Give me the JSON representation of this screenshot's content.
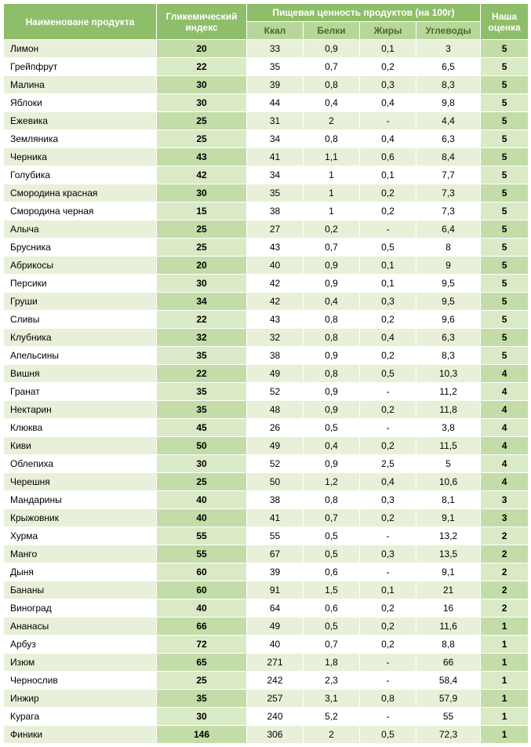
{
  "headers": {
    "product": "Наименоване продукта",
    "gi": "Гликемический индекс",
    "nutrition": "Пищевая ценность продуктов (на 100г)",
    "kcal": "Ккал",
    "protein": "Белки",
    "fat": "Жиры",
    "carbs": "Углеводы",
    "rating": "Наша оценка"
  },
  "columns": [
    "name",
    "gi",
    "kcal",
    "protein",
    "fat",
    "carbs",
    "rating"
  ],
  "rows": [
    [
      "Лимон",
      "20",
      "33",
      "0,9",
      "0,1",
      "3",
      "5"
    ],
    [
      "Грейпфрут",
      "22",
      "35",
      "0,7",
      "0,2",
      "6,5",
      "5"
    ],
    [
      "Малина",
      "30",
      "39",
      "0,8",
      "0,3",
      "8,3",
      "5"
    ],
    [
      "Яблоки",
      "30",
      "44",
      "0,4",
      "0,4",
      "9,8",
      "5"
    ],
    [
      "Ежевика",
      "25",
      "31",
      "2",
      "-",
      "4,4",
      "5"
    ],
    [
      "Земляника",
      "25",
      "34",
      "0,8",
      "0,4",
      "6,3",
      "5"
    ],
    [
      "Черника",
      "43",
      "41",
      "1,1",
      "0,6",
      "8,4",
      "5"
    ],
    [
      "Голубика",
      "42",
      "34",
      "1",
      "0,1",
      "7,7",
      "5"
    ],
    [
      "Смородина красная",
      "30",
      "35",
      "1",
      "0,2",
      "7,3",
      "5"
    ],
    [
      "Смородина черная",
      "15",
      "38",
      "1",
      "0,2",
      "7,3",
      "5"
    ],
    [
      "Алыча",
      "25",
      "27",
      "0,2",
      "-",
      "6,4",
      "5"
    ],
    [
      "Брусника",
      "25",
      "43",
      "0,7",
      "0,5",
      "8",
      "5"
    ],
    [
      "Абрикосы",
      "20",
      "40",
      "0,9",
      "0,1",
      "9",
      "5"
    ],
    [
      "Персики",
      "30",
      "42",
      "0,9",
      "0,1",
      "9,5",
      "5"
    ],
    [
      "Груши",
      "34",
      "42",
      "0,4",
      "0,3",
      "9,5",
      "5"
    ],
    [
      "Сливы",
      "22",
      "43",
      "0,8",
      "0,2",
      "9,6",
      "5"
    ],
    [
      "Клубника",
      "32",
      "32",
      "0,8",
      "0,4",
      "6,3",
      "5"
    ],
    [
      "Апельсины",
      "35",
      "38",
      "0,9",
      "0,2",
      "8,3",
      "5"
    ],
    [
      "Вишня",
      "22",
      "49",
      "0,8",
      "0,5",
      "10,3",
      "4"
    ],
    [
      "Гранат",
      "35",
      "52",
      "0,9",
      "-",
      "11,2",
      "4"
    ],
    [
      "Нектарин",
      "35",
      "48",
      "0,9",
      "0,2",
      "11,8",
      "4"
    ],
    [
      "Клюква",
      "45",
      "26",
      "0,5",
      "-",
      "3,8",
      "4"
    ],
    [
      "Киви",
      "50",
      "49",
      "0,4",
      "0,2",
      "11,5",
      "4"
    ],
    [
      "Облепиха",
      "30",
      "52",
      "0,9",
      "2,5",
      "5",
      "4"
    ],
    [
      "Черешня",
      "25",
      "50",
      "1,2",
      "0,4",
      "10,6",
      "4"
    ],
    [
      "Мандарины",
      "40",
      "38",
      "0,8",
      "0,3",
      "8,1",
      "3"
    ],
    [
      "Крыжовник",
      "40",
      "41",
      "0,7",
      "0,2",
      "9,1",
      "3"
    ],
    [
      "Хурма",
      "55",
      "55",
      "0,5",
      "-",
      "13,2",
      "2"
    ],
    [
      "Манго",
      "55",
      "67",
      "0,5",
      "0,3",
      "13,5",
      "2"
    ],
    [
      "Дыня",
      "60",
      "39",
      "0,6",
      "-",
      "9,1",
      "2"
    ],
    [
      "Бананы",
      "60",
      "91",
      "1,5",
      "0,1",
      "21",
      "2"
    ],
    [
      "Виноград",
      "40",
      "64",
      "0,6",
      "0,2",
      "16",
      "2"
    ],
    [
      "Ананасы",
      "66",
      "49",
      "0,5",
      "0,2",
      "11,6",
      "1"
    ],
    [
      "Арбуз",
      "72",
      "40",
      "0,7",
      "0,2",
      "8,8",
      "1"
    ],
    [
      "Изюм",
      "65",
      "271",
      "1,8",
      "-",
      "66",
      "1"
    ],
    [
      "Чернослив",
      "25",
      "242",
      "2,3",
      "-",
      "58,4",
      "1"
    ],
    [
      "Инжир",
      "35",
      "257",
      "3,1",
      "0,8",
      "57,9",
      "1"
    ],
    [
      "Курага",
      "30",
      "240",
      "5,2",
      "-",
      "55",
      "1"
    ],
    [
      "Финики",
      "146",
      "306",
      "2",
      "0,5",
      "72,3",
      "1"
    ]
  ],
  "colors": {
    "header_main_bg": "#8fbe6a",
    "header_main_fg": "#ffffff",
    "header_sub_bg": "#b8d69a",
    "header_sub_fg": "#4a6b2a",
    "row_odd_bg": "#e8f0d9",
    "row_even_bg": "#ffffff",
    "em_odd_bg": "#c3dca8",
    "em_even_bg": "#dbeac6",
    "border": "#ffffff"
  }
}
